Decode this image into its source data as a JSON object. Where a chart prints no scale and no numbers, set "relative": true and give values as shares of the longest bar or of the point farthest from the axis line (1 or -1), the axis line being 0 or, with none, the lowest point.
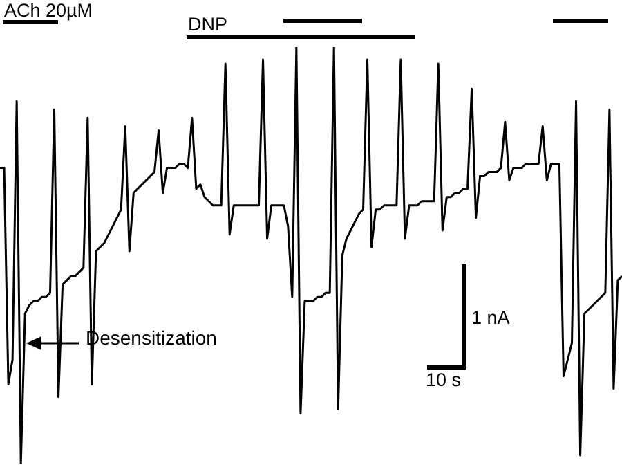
{
  "chart_data": {
    "type": "line",
    "relative": true,
    "marker": "none",
    "categories": [
      null,
      null,
      null,
      null,
      null,
      null,
      null,
      null,
      null,
      null,
      null,
      null,
      null,
      null,
      null,
      null,
      null,
      null,
      null,
      null,
      null,
      null,
      null,
      null,
      null,
      null,
      null,
      null,
      null,
      null,
      null,
      null,
      null,
      null,
      null,
      null,
      null,
      null,
      null,
      null,
      null,
      null,
      null,
      null,
      null,
      null,
      null,
      null,
      null,
      null,
      null,
      null,
      null,
      null,
      null,
      null,
      null,
      null,
      null,
      null,
      null,
      null,
      null,
      null,
      null,
      null,
      null,
      null,
      null,
      null,
      null,
      null,
      null,
      null,
      null,
      null,
      null,
      null,
      null,
      null,
      null,
      null,
      null,
      null,
      null,
      null,
      null,
      null,
      null,
      null,
      null,
      null,
      null,
      null,
      null,
      null,
      null,
      null,
      null,
      null,
      null,
      null,
      null,
      null,
      null,
      null,
      null,
      null,
      null,
      null,
      null,
      null,
      null,
      null,
      null,
      null,
      null,
      null,
      null,
      null,
      null,
      null,
      null,
      null,
      null,
      null,
      null,
      null,
      null,
      null,
      null,
      null,
      null,
      null,
      null,
      null,
      null,
      null,
      null,
      null,
      null,
      null,
      null,
      null,
      null,
      null,
      null,
      null,
      null,
      null
    ],
    "series": [
      {
        "color": "#000000",
        "values": [
          0.71,
          0.71,
          0.19,
          0.25,
          0.87,
          0,
          0.36,
          0.38,
          0.39,
          0.39,
          0.4,
          0.4,
          0.41,
          0.85,
          0.16,
          0.43,
          0.44,
          0.45,
          0.45,
          0.46,
          0.47,
          0.83,
          0.19,
          0.51,
          0.52,
          0.53,
          0.55,
          0.57,
          0.59,
          0.61,
          0.81,
          0.51,
          0.65,
          0.66,
          0.67,
          0.68,
          0.69,
          0.7,
          0.8,
          0.65,
          0.71,
          0.71,
          0.71,
          0.72,
          0.72,
          0.71,
          0.83,
          0.66,
          0.67,
          0.64,
          0.63,
          0.62,
          0.62,
          0.62,
          0.96,
          0.55,
          0.62,
          0.62,
          0.62,
          0.62,
          0.62,
          0.62,
          0.62,
          0.97,
          0.54,
          0.62,
          0.62,
          0.62,
          0.62,
          0.57,
          0.4,
          1,
          0.12,
          0.39,
          0.39,
          0.39,
          0.4,
          0.4,
          0.41,
          0.41,
          1,
          0.13,
          0.5,
          0.54,
          0.56,
          0.58,
          0.6,
          0.61,
          0.97,
          0.52,
          0.61,
          0.61,
          0.62,
          0.62,
          0.62,
          0.62,
          0.97,
          0.54,
          0.62,
          0.62,
          0.62,
          0.63,
          0.63,
          0.63,
          0.63,
          0.96,
          0.56,
          0.64,
          0.64,
          0.65,
          0.65,
          0.66,
          0.66,
          0.9,
          0.59,
          0.69,
          0.69,
          0.7,
          0.7,
          0.7,
          0.71,
          0.82,
          0.68,
          0.71,
          0.71,
          0.71,
          0.72,
          0.72,
          0.72,
          0.72,
          0.81,
          0.68,
          0.72,
          0.72,
          0.72,
          0.21,
          0.25,
          0.29,
          0.87,
          0.02,
          0.36,
          0.37,
          0.38,
          0.39,
          0.4,
          0.41,
          0.85,
          0.18,
          0.44,
          0.45
        ]
      }
    ],
    "annotations": [
      "ACh 20µM",
      "DNP",
      "Desensitization",
      "1 nA",
      "10 s"
    ]
  }
}
